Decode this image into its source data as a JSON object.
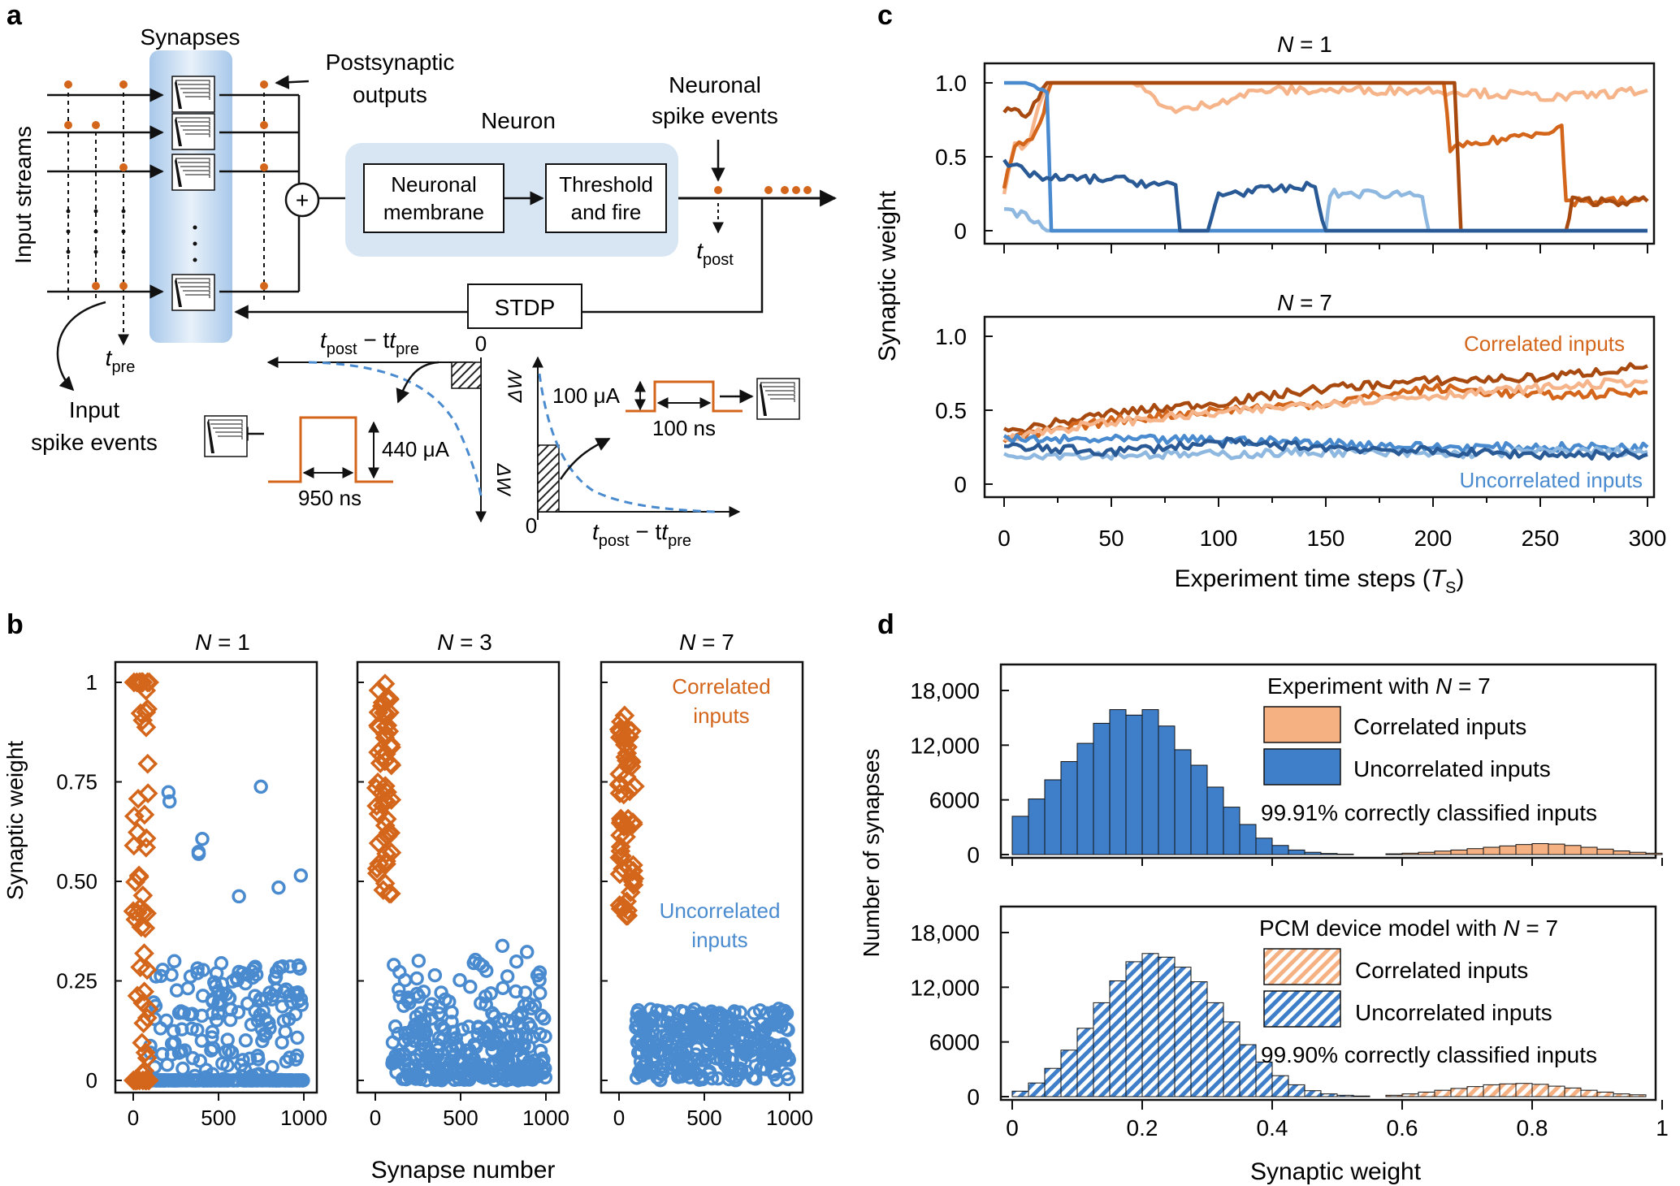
{
  "colors": {
    "orange": "#d4661c",
    "light_orange": "#f6b48a",
    "dark_orange": "#a84a10",
    "blue": "#4a8bd0",
    "light_blue": "#8fb8e0",
    "dark_blue": "#2a5a96",
    "hist_blue": "#3f7ec9",
    "hist_orange": "#f6b183",
    "membrane_blue": "#d8e6f4"
  },
  "panel_a": {
    "letter": "a",
    "synapses_label": "Synapses",
    "postsynaptic_line1": "Postsynaptic",
    "postsynaptic_line2": "outputs",
    "neuron_label": "Neuron",
    "membrane_line1": "Neuronal",
    "membrane_line2": "membrane",
    "threshold_line1": "Threshold",
    "threshold_line2": "and fire",
    "spike_line1": "Neuronal",
    "spike_line2": "spike events",
    "input_streams": "Input streams",
    "stdp": "STDP",
    "input_spike_line1": "Input",
    "input_spike_line2": "spike events",
    "t_post": "t",
    "t_post_sub": "post",
    "t_pre": "t",
    "t_pre_sub": "pre",
    "dt_label": "t",
    "dt_sub1": "post",
    "dt_minus": " − t",
    "dt_sub2": "pre",
    "zero": "0",
    "delta_w": "ΔW",
    "current_440": "440 μA",
    "time_950": "950 ns",
    "current_100": "100 μA",
    "time_100": "100 ns",
    "plus": "+"
  },
  "panel_b": {
    "letter": "b",
    "xlabel": "Synapse number",
    "ylabel": "Synaptic weight",
    "xticks": [
      "0",
      "500",
      "1000"
    ],
    "yticks": [
      "0",
      "0.25",
      "0.50",
      "0.75",
      "1"
    ],
    "titles": [
      "N",
      "N",
      "N"
    ],
    "title_eq": [
      " = 1",
      " = 3",
      " = 7"
    ],
    "correlated_label_line1": "Correlated",
    "correlated_label_line2": "inputs",
    "uncorrelated_label_line1": "Uncorrelated",
    "uncorrelated_label_line2": "inputs"
  },
  "panel_c": {
    "letter": "c",
    "title_top": "N",
    "title_top_eq": " = 1",
    "title_bottom": "N",
    "title_bottom_eq": " = 7",
    "ylabel": "Synaptic weight",
    "xlabel": "Experiment time steps (",
    "xlabel_var": "T",
    "xlabel_sub": "S",
    "xlabel_end": ")",
    "yticks": [
      "0",
      "0.5",
      "1.0"
    ],
    "xticks": [
      "0",
      "50",
      "100",
      "150",
      "200",
      "250",
      "300"
    ],
    "correlated": "Correlated inputs",
    "uncorrelated": "Uncorrelated inputs"
  },
  "panel_d": {
    "letter": "d",
    "ylabel": "Number of synapses",
    "xlabel": "Synaptic weight",
    "yticks": [
      "0",
      "6000",
      "12,000",
      "18,000"
    ],
    "xticks": [
      "0",
      "0.2",
      "0.4",
      "0.6",
      "0.8",
      "1"
    ],
    "top_title": "Experiment with ",
    "top_title_n": "N",
    "top_title_eq": " = 7",
    "bottom_title": "PCM device model with ",
    "bottom_title_n": "N",
    "bottom_title_eq": " = 7",
    "correlated": "Correlated inputs",
    "uncorrelated": "Uncorrelated inputs",
    "top_accuracy": "99.91% correctly classified inputs",
    "bottom_accuracy": "99.90% correctly classified inputs"
  },
  "chart_data": [
    {
      "type": "line",
      "panel": "c-top",
      "x_range": [
        0,
        300
      ],
      "ylim": [
        0,
        1.0
      ],
      "series": [
        {
          "color": "light_orange",
          "points": [
            [
              0,
              0.25
            ],
            [
              5,
              0.6
            ],
            [
              10,
              0.55
            ],
            [
              20,
              1.0
            ],
            [
              60,
              1.0
            ],
            [
              80,
              0.8
            ],
            [
              120,
              0.95
            ],
            [
              200,
              0.95
            ],
            [
              260,
              0.9
            ],
            [
              300,
              0.95
            ]
          ]
        },
        {
          "color": "orange",
          "points": [
            [
              0,
              0.3
            ],
            [
              5,
              0.55
            ],
            [
              15,
              0.65
            ],
            [
              22,
              1.0
            ],
            [
              205,
              1.0
            ],
            [
              208,
              0.55
            ],
            [
              260,
              0.7
            ],
            [
              262,
              0.2
            ],
            [
              300,
              0.2
            ]
          ]
        },
        {
          "color": "dark_orange",
          "points": [
            [
              0,
              0.8
            ],
            [
              5,
              0.85
            ],
            [
              10,
              0.75
            ],
            [
              20,
              1.0
            ],
            [
              210,
              1.0
            ],
            [
              213,
              0
            ],
            [
              262,
              0
            ],
            [
              265,
              0.2
            ],
            [
              300,
              0.2
            ]
          ]
        },
        {
          "color": "light_blue",
          "points": [
            [
              0,
              0.15
            ],
            [
              10,
              0.1
            ],
            [
              20,
              0
            ],
            [
              150,
              0
            ],
            [
              152,
              0.25
            ],
            [
              195,
              0.25
            ],
            [
              198,
              0
            ],
            [
              300,
              0
            ]
          ]
        },
        {
          "color": "blue",
          "points": [
            [
              0,
              1.0
            ],
            [
              10,
              1.0
            ],
            [
              20,
              0.95
            ],
            [
              22,
              0
            ],
            [
              300,
              0
            ]
          ]
        },
        {
          "color": "dark_blue",
          "points": [
            [
              0,
              0.45
            ],
            [
              20,
              0.35
            ],
            [
              50,
              0.35
            ],
            [
              80,
              0.3
            ],
            [
              82,
              0
            ],
            [
              95,
              0
            ],
            [
              100,
              0.25
            ],
            [
              145,
              0.3
            ],
            [
              150,
              0
            ],
            [
              300,
              0
            ]
          ]
        }
      ]
    },
    {
      "type": "line",
      "panel": "c-bottom",
      "x_range": [
        0,
        300
      ],
      "ylim": [
        0,
        1.0
      ],
      "series": [
        {
          "color": "dark_orange",
          "points": [
            [
              0,
              0.35
            ],
            [
              50,
              0.48
            ],
            [
              100,
              0.55
            ],
            [
              150,
              0.65
            ],
            [
              200,
              0.7
            ],
            [
              250,
              0.72
            ],
            [
              300,
              0.8
            ]
          ]
        },
        {
          "color": "orange",
          "points": [
            [
              0,
              0.3
            ],
            [
              50,
              0.43
            ],
            [
              100,
              0.5
            ],
            [
              150,
              0.55
            ],
            [
              200,
              0.65
            ],
            [
              250,
              0.6
            ],
            [
              300,
              0.62
            ]
          ]
        },
        {
          "color": "light_orange",
          "points": [
            [
              0,
              0.32
            ],
            [
              50,
              0.42
            ],
            [
              100,
              0.48
            ],
            [
              150,
              0.55
            ],
            [
              200,
              0.6
            ],
            [
              250,
              0.65
            ],
            [
              300,
              0.7
            ]
          ]
        },
        {
          "color": "blue",
          "points": [
            [
              0,
              0.3
            ],
            [
              50,
              0.3
            ],
            [
              100,
              0.3
            ],
            [
              150,
              0.28
            ],
            [
              200,
              0.25
            ],
            [
              250,
              0.25
            ],
            [
              300,
              0.25
            ]
          ]
        },
        {
          "color": "light_blue",
          "points": [
            [
              0,
              0.2
            ],
            [
              50,
              0.2
            ],
            [
              100,
              0.2
            ],
            [
              150,
              0.22
            ],
            [
              200,
              0.2
            ],
            [
              250,
              0.22
            ],
            [
              300,
              0.22
            ]
          ]
        },
        {
          "color": "dark_blue",
          "points": [
            [
              0,
              0.25
            ],
            [
              50,
              0.22
            ],
            [
              100,
              0.28
            ],
            [
              150,
              0.25
            ],
            [
              200,
              0.22
            ],
            [
              250,
              0.2
            ],
            [
              300,
              0.2
            ]
          ]
        }
      ]
    },
    {
      "type": "bar",
      "panel": "d-top",
      "bin_width": 0.025,
      "x_range": [
        0,
        1
      ],
      "ylim": [
        0,
        18000
      ],
      "series": [
        {
          "name": "Uncorrelated inputs",
          "start": 0.0,
          "values": [
            4200,
            6100,
            8200,
            10200,
            12200,
            14400,
            15900,
            15300,
            15900,
            14100,
            11500,
            9800,
            7400,
            5200,
            3300,
            1800,
            1000,
            500,
            250,
            120,
            50
          ]
        },
        {
          "name": "Correlated inputs",
          "start": 0.575,
          "values": [
            80,
            150,
            250,
            380,
            500,
            650,
            800,
            950,
            1100,
            1200,
            1150,
            1000,
            800,
            600,
            400,
            250,
            150
          ]
        }
      ]
    },
    {
      "type": "bar",
      "panel": "d-bottom",
      "bin_width": 0.025,
      "x_range": [
        0,
        1
      ],
      "ylim": [
        0,
        18000
      ],
      "series": [
        {
          "name": "Uncorrelated inputs",
          "start": 0.0,
          "values": [
            600,
            1500,
            3100,
            5100,
            7500,
            10300,
            12700,
            14800,
            15700,
            15300,
            14200,
            12600,
            10300,
            8200,
            5700,
            3800,
            2300,
            1300,
            650,
            300,
            150,
            70
          ]
        },
        {
          "name": "Correlated inputs",
          "start": 0.575,
          "values": [
            150,
            300,
            500,
            700,
            900,
            1100,
            1300,
            1400,
            1450,
            1350,
            1150,
            950,
            700,
            500,
            300,
            200
          ]
        }
      ]
    }
  ]
}
